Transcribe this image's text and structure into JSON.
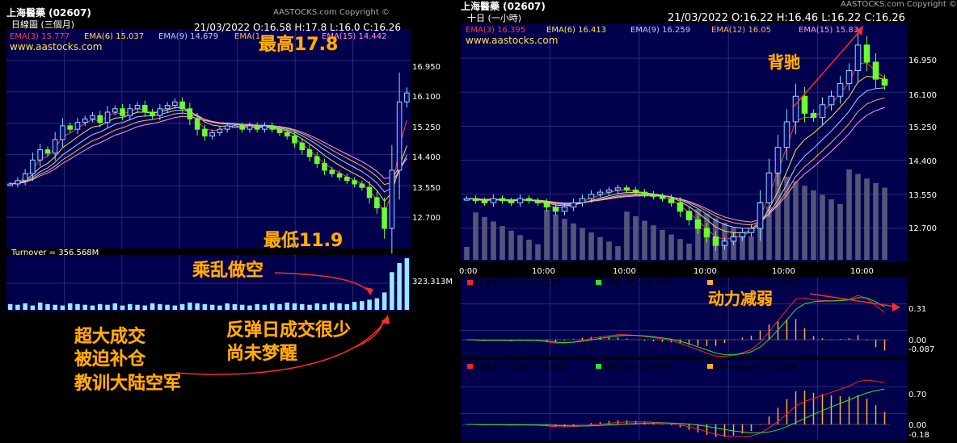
{
  "left": {
    "title": "上海醫藥 (02607)",
    "subtitle": "日線圖 (三個月)",
    "copyright": "AASTOCKS.com Copyright ©",
    "website": "www.aastocks.com",
    "quote": "21/03/2022   O:16.58  H:17.8  L:16.0  C:16.26",
    "ema": [
      "EMA(3) 15.777",
      "EMA(6) 15.037",
      "EMA(9) 14.679",
      "EMA(1",
      "EMA(15) 14.442"
    ],
    "ema_colors": [
      "#ff3a3a",
      "#ffe23a",
      "#b9c8ff",
      "#ffb44a",
      "#ff9ad6"
    ],
    "yticks": [
      "16.950",
      "16.100",
      "15.250",
      "14.400",
      "13.550",
      "12.700"
    ],
    "turnover_label": "Turnover = 356.568M",
    "turnover_tick": "323.313M"
  },
  "right": {
    "title": "上海醫藥 (02607)",
    "subtitle": "十日 (一小時)",
    "copyright": "AASTOCKS.com Copyright ©",
    "website": "www.aastocks.com",
    "quote": "21/03/2022   O:16.22  H:16.46  L:16.22  C:16.26",
    "ema": [
      "EMA(3) 16.395",
      "EMA(6) 16.413",
      "EMA(9) 16.259",
      "EMA(12) 16.05",
      "EMA(15) 15.83"
    ],
    "ema_colors": [
      "#ff3a3a",
      "#ffe23a",
      "#b9c8ff",
      "#ffb44a",
      "#ff9ad6"
    ],
    "yticks": [
      "16.950",
      "16.100",
      "15.250",
      "14.400",
      "13.550",
      "12.700"
    ],
    "xticks": [
      "0:00",
      "10:00",
      "10:00",
      "10:00",
      "10:00",
      "10:00"
    ],
    "macd1": {
      "macd": "MACD (7,10) = 0.181",
      "ema": "EMA (3) = 0.227",
      "div": "Divergence = -0.047",
      "ticks": [
        "0.31",
        "0.00",
        "-0.087"
      ]
    },
    "macd2": {
      "macd": "MACD (12,26) = 0.838",
      "ema": "EMA (9) = 0.774",
      "div": "Divergence = 0.064",
      "ticks": [
        "0.70",
        "0.00",
        "-0.18"
      ]
    }
  },
  "annotations": {
    "high": "最高17.8",
    "low": "最低11.9",
    "short": "乘乱做空",
    "volume_note": [
      "超大成交",
      "被迫补仓",
      "教训大陆空军"
    ],
    "rebound_note": [
      "反弹日成交很少",
      "尚未梦醒"
    ],
    "divergence": "背驰",
    "momentum": "动力减弱"
  },
  "chart_data": [
    {
      "type": "candlestick",
      "title": "上海醫藥 (02607) 日線圖 (三個月)",
      "ylim": [
        11.9,
        17.8
      ],
      "close_approx": [
        13.6,
        13.7,
        13.9,
        14.3,
        14.6,
        14.5,
        14.9,
        15.3,
        15.2,
        15.4,
        15.5,
        15.6,
        15.4,
        15.7,
        15.8,
        15.6,
        15.8,
        15.9,
        15.7,
        15.6,
        15.8,
        15.9,
        16.0,
        15.8,
        15.5,
        15.2,
        15.0,
        15.1,
        15.2,
        15.3,
        15.3,
        15.2,
        15.3,
        15.2,
        15.3,
        15.2,
        15.1,
        15.0,
        14.8,
        14.6,
        14.4,
        14.2,
        14.0,
        13.9,
        13.8,
        13.7,
        13.6,
        13.5,
        13.2,
        12.9,
        12.3,
        14.0,
        16.0,
        16.26
      ],
      "volume_approx": [
        40,
        35,
        45,
        30,
        50,
        40,
        35,
        30,
        45,
        40,
        35,
        30,
        40,
        35,
        45,
        30,
        40,
        35,
        30,
        45,
        40,
        35,
        30,
        40,
        50,
        45,
        40,
        35,
        30,
        45,
        40,
        35,
        30,
        40,
        35,
        45,
        40,
        50,
        45,
        40,
        35,
        45,
        40,
        50,
        45,
        40,
        55,
        60,
        70,
        80,
        120,
        260,
        323,
        356
      ]
    },
    {
      "type": "candlestick",
      "title": "上海醫藥 (02607) 十日 (一小時)",
      "ylim": [
        12.2,
        17.5
      ],
      "close_approx": [
        13.6,
        13.55,
        13.5,
        13.6,
        13.55,
        13.5,
        13.6,
        13.55,
        13.5,
        13.4,
        13.3,
        13.4,
        13.5,
        13.6,
        13.7,
        13.75,
        13.8,
        13.85,
        13.8,
        13.75,
        13.7,
        13.65,
        13.6,
        13.5,
        13.3,
        13.1,
        12.9,
        12.7,
        12.5,
        12.6,
        12.7,
        12.8,
        12.9,
        13.5,
        14.2,
        14.8,
        15.4,
        16.0,
        15.6,
        15.5,
        15.8,
        16.0,
        16.3,
        16.6,
        17.2,
        16.8,
        16.4,
        16.26
      ],
      "macd_7_10": {
        "macd": 0.181,
        "ema3": 0.227,
        "divergence": -0.047
      },
      "macd_12_26": {
        "macd": 0.838,
        "ema9": 0.774,
        "divergence": 0.064
      }
    }
  ]
}
